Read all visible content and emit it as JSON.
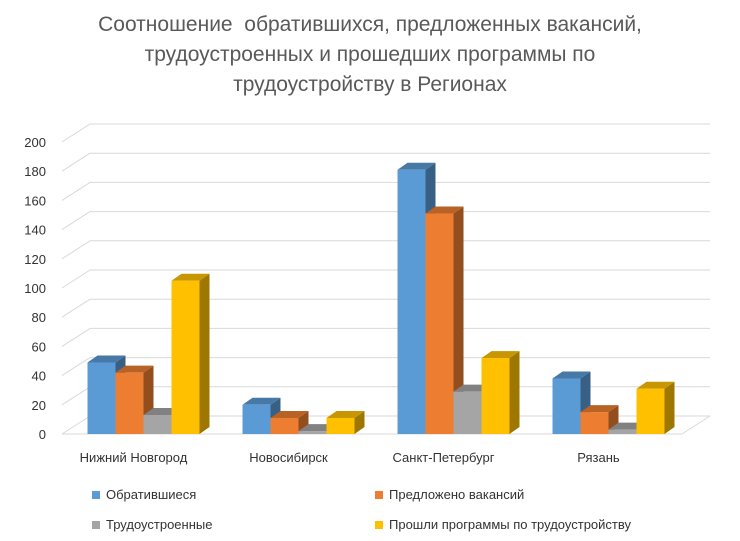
{
  "chart_data": {
    "type": "bar",
    "title_lines": [
      "Соотношение  обратившихся, предложенных вакансий,",
      "трудоустроенных и прошедших программы по",
      "трудоустройству в Регионах"
    ],
    "categories": [
      "Нижний Новгород",
      "Новосибирск",
      "Санкт-Петербург",
      "Рязань"
    ],
    "series": [
      {
        "name": "Обратившиеся",
        "color": "#5B9BD5",
        "values": [
          49,
          20,
          181,
          38
        ]
      },
      {
        "name": "Предложено вакансий",
        "color": "#ED7D31",
        "values": [
          42,
          11,
          151,
          15
        ]
      },
      {
        "name": "Трудоустроенные",
        "color": "#A5A5A5",
        "values": [
          13,
          2,
          29,
          3
        ]
      },
      {
        "name": "Прошли программы по трудоустройству",
        "color": "#FFC000",
        "values": [
          105,
          11,
          52,
          31
        ]
      }
    ],
    "y_ticks": [
      "0",
      "20",
      "40",
      "60",
      "80",
      "100",
      "120",
      "140",
      "160",
      "180",
      "200"
    ],
    "ylim": [
      0,
      200
    ],
    "grid": true,
    "three_d": true,
    "legend_position": "bottom"
  }
}
